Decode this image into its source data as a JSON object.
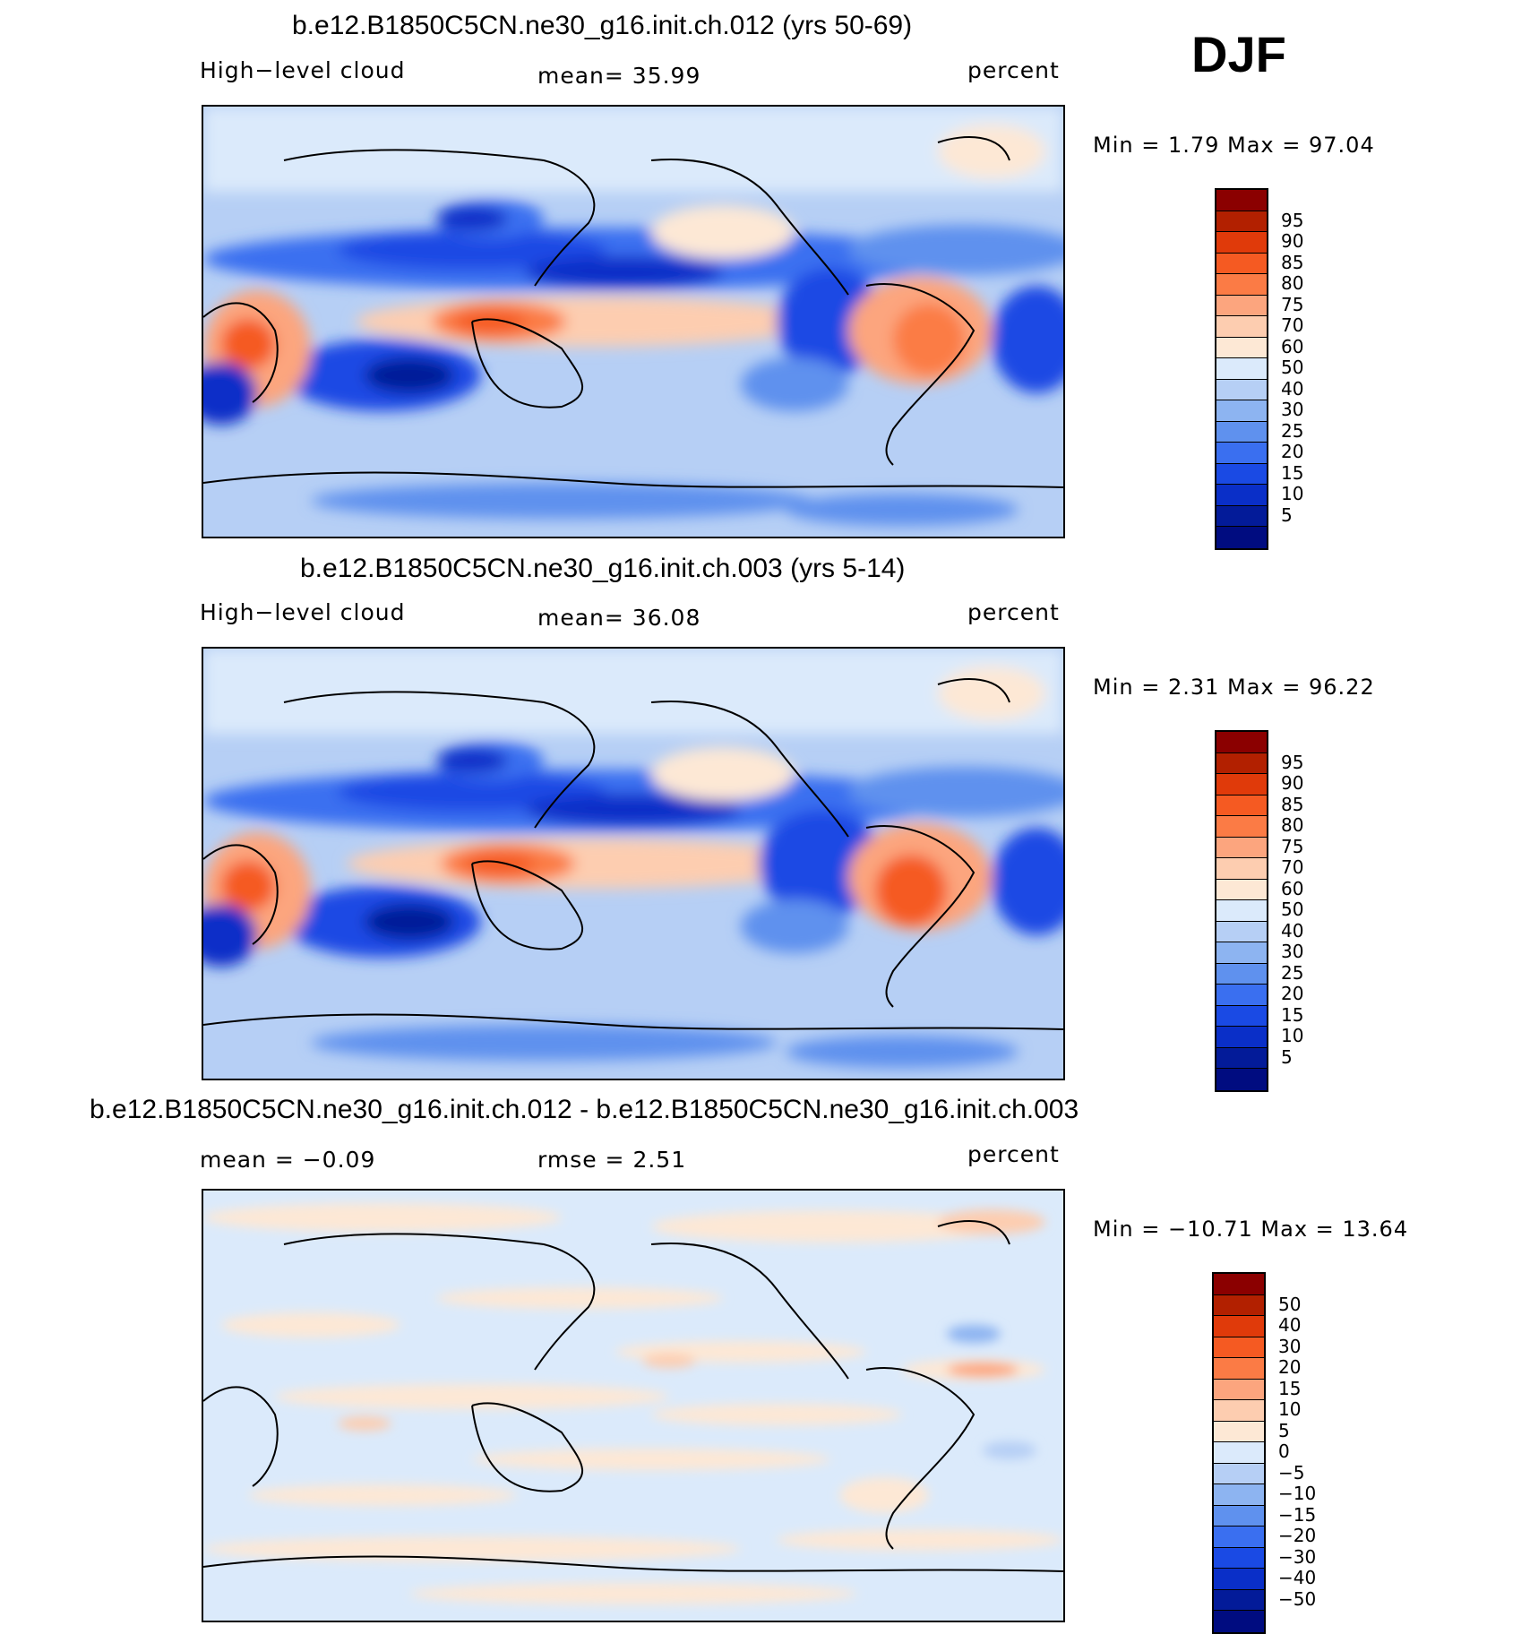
{
  "season": "DJF",
  "panels": [
    {
      "title": "b.e12.B1850C5CN.ne30_g16.init.ch.012 (yrs 50-69)",
      "left_label": "High−level cloud",
      "center_label": "mean=   35.99",
      "right_label": "percent",
      "stats": "Min =    1.79  Max =   97.04",
      "colorbar": {
        "colors": [
          "#8b0000",
          "#b22000",
          "#e03a0a",
          "#f55a22",
          "#fb7b45",
          "#fca57e",
          "#fdcdb0",
          "#fde8d5",
          "#dbeafb",
          "#b6cff5",
          "#8db4f1",
          "#5f91ee",
          "#3a6ff0",
          "#1a4ae4",
          "#0a2fc8",
          "#031b99",
          "#000c80"
        ],
        "labels": [
          "95",
          "90",
          "85",
          "80",
          "75",
          "70",
          "60",
          "50",
          "40",
          "30",
          "25",
          "20",
          "15",
          "10",
          "5"
        ]
      }
    },
    {
      "title": "b.e12.B1850C5CN.ne30_g16.init.ch.003 (yrs 5-14)",
      "left_label": "High−level cloud",
      "center_label": "mean=   36.08",
      "right_label": "percent",
      "stats": "Min =    2.31  Max =   96.22",
      "colorbar": {
        "colors": [
          "#8b0000",
          "#b22000",
          "#e03a0a",
          "#f55a22",
          "#fb7b45",
          "#fca57e",
          "#fdcdb0",
          "#fde8d5",
          "#dbeafb",
          "#b6cff5",
          "#8db4f1",
          "#5f91ee",
          "#3a6ff0",
          "#1a4ae4",
          "#0a2fc8",
          "#031b99",
          "#000c80"
        ],
        "labels": [
          "95",
          "90",
          "85",
          "80",
          "75",
          "70",
          "60",
          "50",
          "40",
          "30",
          "25",
          "20",
          "15",
          "10",
          "5"
        ]
      }
    },
    {
      "title": "b.e12.B1850C5CN.ne30_g16.init.ch.012 - b.e12.B1850C5CN.ne30_g16.init.ch.003",
      "left_label": "mean =   −0.09",
      "center_label": "rmse =    2.51",
      "right_label": "percent",
      "stats": "Min = −10.71  Max =   13.64",
      "colorbar": {
        "colors": [
          "#8b0000",
          "#b22000",
          "#e03a0a",
          "#f55a22",
          "#fb7b45",
          "#fca57e",
          "#fdcdb0",
          "#fde8d5",
          "#dbeafb",
          "#b6cff5",
          "#8db4f1",
          "#5f91ee",
          "#3a6ff0",
          "#1a4ae4",
          "#0a2fc8",
          "#031b99",
          "#000c80"
        ],
        "labels": [
          "50",
          "40",
          "30",
          "20",
          "15",
          "10",
          "5",
          "0",
          "−5",
          "−10",
          "−15",
          "−20",
          "−30",
          "−40",
          "−50"
        ]
      }
    }
  ]
}
